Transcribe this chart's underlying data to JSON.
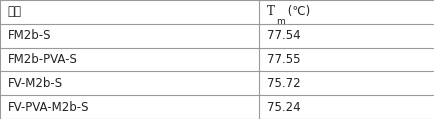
{
  "header_col1": "항체",
  "header_col2_T": "T",
  "header_col2_sub": "m",
  "header_col2_rest": " (℃)",
  "rows": [
    [
      "FM2b-S",
      "77.54"
    ],
    [
      "FM2b-PVA-S",
      "77.55"
    ],
    [
      "FV-M2b-S",
      "75.72"
    ],
    [
      "FV-PVA-M2b-S",
      "75.24"
    ]
  ],
  "col_split": 0.595,
  "bg_color": "#f0f0f0",
  "border_color": "#999999",
  "text_color": "#222222",
  "font_size": 8.5,
  "figsize": [
    4.35,
    1.19
  ],
  "dpi": 100
}
